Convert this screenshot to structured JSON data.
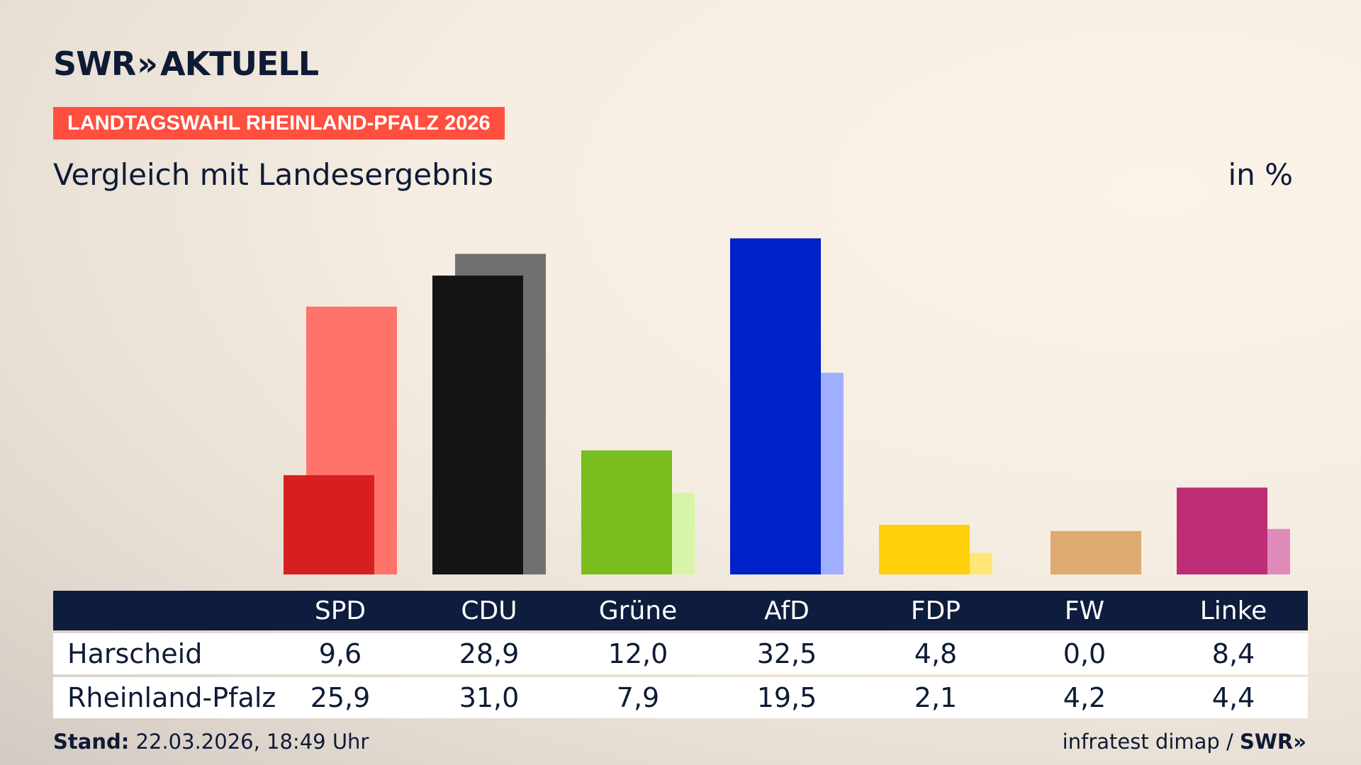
{
  "brand": {
    "name": "SWR",
    "product": "AKTUELL",
    "chevrons": "»"
  },
  "kicker": "LANDTAGSWAHL RHEINLAND-PFALZ 2026",
  "subtitle": "Vergleich mit Landesergebnis",
  "unit": "in %",
  "footer": {
    "stand_label": "Stand:",
    "stand_value": "22.03.2026, 18:49 Uhr",
    "source": "infratest dimap",
    "separator": "/",
    "source_brand": "SWR",
    "source_brand_chevrons": "»"
  },
  "colors": {
    "kicker_bg": "#ff4f3f",
    "text": "#0e1b36",
    "table_header_bg": "#0e1d3d"
  },
  "chart_data": {
    "type": "bar",
    "title": "Vergleich mit Landesergebnis",
    "unit": "in %",
    "categories": [
      "SPD",
      "CDU",
      "Grüne",
      "AfD",
      "FDP",
      "FW",
      "Linke"
    ],
    "series": [
      {
        "name": "Harscheid",
        "values": [
          9.6,
          28.9,
          12.0,
          32.5,
          4.8,
          0.0,
          8.4
        ],
        "labels": [
          "9,6",
          "28,9",
          "12,0",
          "32,5",
          "4,8",
          "0,0",
          "8,4"
        ],
        "colors": [
          "#d71f1f",
          "#141414",
          "#79be1e",
          "#0020c8",
          "#ffcf0a",
          "#deaa72",
          "#be2d76"
        ]
      },
      {
        "name": "Rheinland-Pfalz",
        "values": [
          25.9,
          31.0,
          7.9,
          19.5,
          2.1,
          4.2,
          4.4
        ],
        "labels": [
          "25,9",
          "31,0",
          "7,9",
          "19,5",
          "2,1",
          "4,2",
          "4,4"
        ],
        "colors": [
          "#ff736b",
          "#717171",
          "#d7f5a8",
          "#a0aeff",
          "#ffe676",
          "#deaa72",
          "#e08ab9"
        ]
      }
    ],
    "ylim": [
      0,
      33
    ],
    "grid": false,
    "legend": "table-below"
  }
}
